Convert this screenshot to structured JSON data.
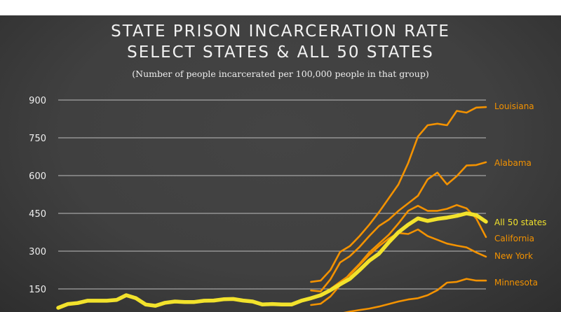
{
  "chart_data": {
    "type": "line",
    "title": "STATE PRISON INCARCERATION RATE",
    "subtitle_line2": "SELECT STATES & ALL 50 STATES",
    "note": "(Number of people incarcerated per 100,000 people in that group)",
    "xlabel": "",
    "ylabel": "",
    "ylim": [
      0,
      900
    ],
    "yticks": [
      "150",
      "300",
      "450",
      "600",
      "750",
      "900"
    ],
    "grid": true,
    "legend": "direct labels at right",
    "colors": {
      "all_states": "#f2e22c",
      "states": "#f39200",
      "background": "#404040",
      "grid": "#bdbdbd"
    },
    "series": [
      {
        "name": "All 50 states",
        "values": [
          75,
          90,
          94,
          103,
          103,
          103,
          106,
          125,
          113,
          88,
          83,
          95,
          100,
          98,
          98,
          103,
          104,
          109,
          110,
          104,
          100,
          88,
          90,
          88,
          88,
          103,
          113,
          125,
          145,
          168,
          190,
          225,
          262,
          290,
          335,
          375,
          405,
          430,
          420,
          428,
          433,
          440,
          450,
          443,
          417
        ]
      },
      {
        "name": "Louisiana",
        "values": [
          178,
          183,
          225,
          297,
          320,
          360,
          405,
          455,
          510,
          565,
          650,
          755,
          800,
          806,
          800,
          857,
          850,
          870,
          872
        ]
      },
      {
        "name": "Alabama",
        "values": [
          144,
          140,
          188,
          255,
          280,
          317,
          360,
          400,
          425,
          460,
          490,
          520,
          585,
          612,
          565,
          598,
          640,
          642,
          653
        ]
      },
      {
        "name": "California",
        "values": [
          86,
          91,
          120,
          165,
          210,
          250,
          295,
          330,
          365,
          410,
          460,
          480,
          460,
          460,
          468,
          483,
          470,
          430,
          356
        ]
      },
      {
        "name": "New York",
        "values": [
          114,
          122,
          150,
          178,
          205,
          245,
          285,
          320,
          350,
          372,
          368,
          386,
          360,
          345,
          330,
          322,
          315,
          295,
          278
        ]
      },
      {
        "name": "Minnesota",
        "values": [
          35,
          40,
          45,
          52,
          60,
          66,
          72,
          80,
          90,
          100,
          108,
          113,
          125,
          145,
          175,
          178,
          190,
          183,
          183
        ]
      }
    ]
  }
}
